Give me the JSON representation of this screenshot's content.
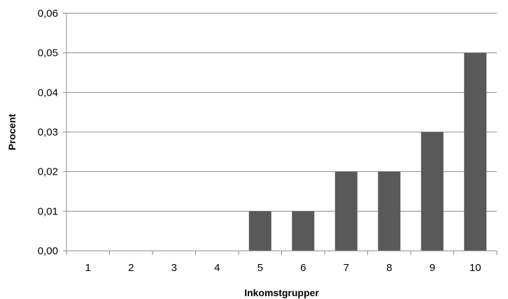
{
  "chart_data": {
    "type": "bar",
    "title": "",
    "xlabel": "Inkomstgrupper",
    "ylabel": "Procent",
    "categories": [
      "1",
      "2",
      "3",
      "4",
      "5",
      "6",
      "7",
      "8",
      "9",
      "10"
    ],
    "values": [
      0,
      0,
      0,
      0,
      0.01,
      0.01,
      0.02,
      0.02,
      0.03,
      0.05
    ],
    "ylim": [
      0,
      0.06
    ],
    "yticks": [
      "0,00",
      "0,01",
      "0,02",
      "0,03",
      "0,04",
      "0,05",
      "0,06"
    ],
    "grid": true,
    "legend": "none",
    "bar_color": "#595959"
  }
}
